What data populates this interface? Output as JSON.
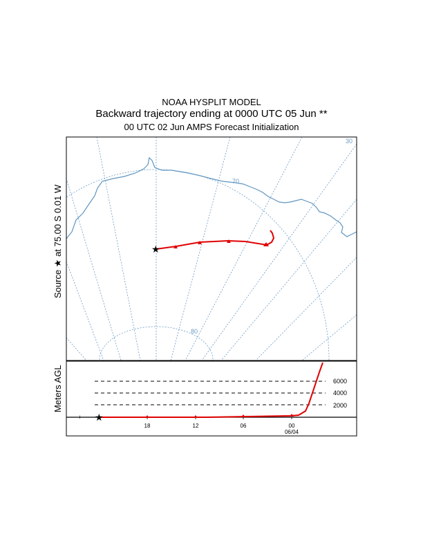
{
  "header": {
    "title_line1": "NOAA HYSPLIT MODEL",
    "title_line2": "Backward trajectory ending at 0000 UTC 05 Jun **",
    "title_line3": "00 UTC 02 Jun    AMPS  Forecast Initialization"
  },
  "map": {
    "side_label": "Source  ★  at   75.00 S    0.01 W",
    "graticule_labels": {
      "top_right": "30",
      "lat_upper": "70",
      "lat_lower": "80"
    },
    "colors": {
      "coast": "#5f95c0",
      "graticule": "#6a9bc6",
      "trajectory": "#e00000"
    },
    "source_icon": "star-icon",
    "endpoint_icon": "triangle-icon"
  },
  "profile": {
    "ylabel": "Meters AGL",
    "levels": [
      "6000",
      "4000",
      "2000"
    ],
    "time_ticks": [
      "18",
      "12",
      "06",
      "00"
    ],
    "date_label": "06/04"
  }
}
